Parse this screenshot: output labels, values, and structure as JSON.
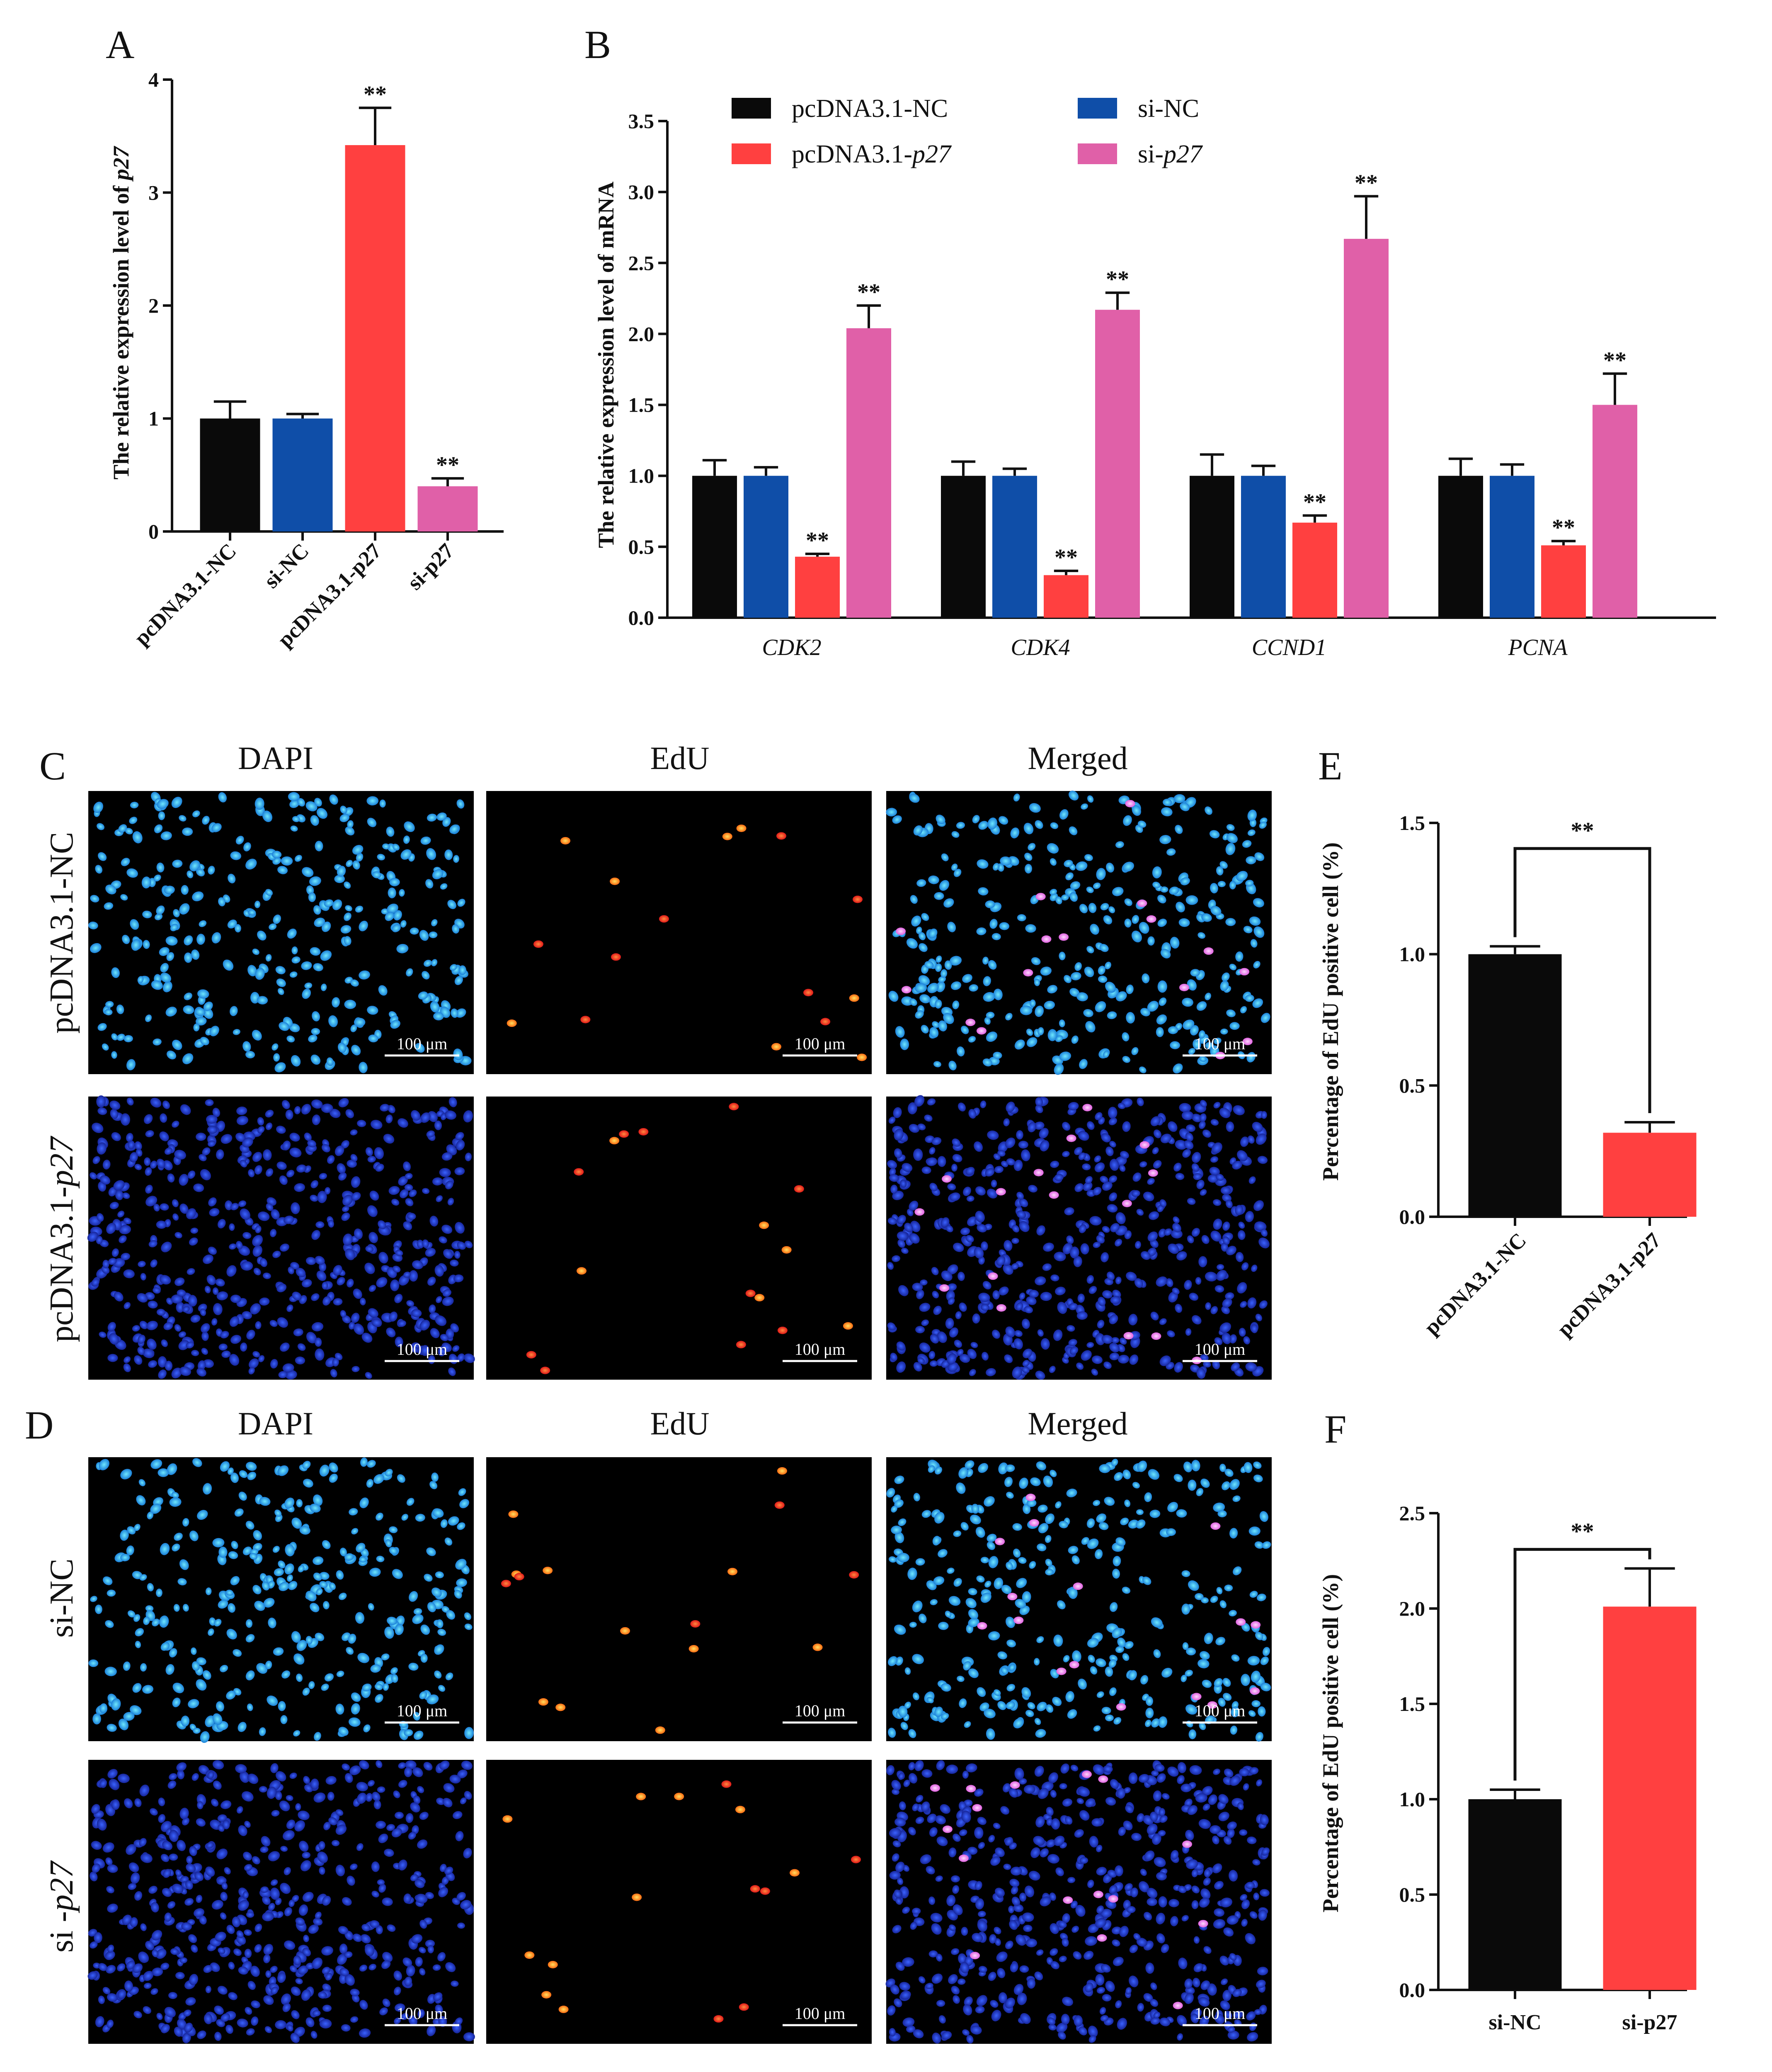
{
  "colors": {
    "black": "#0a0a0a",
    "blue": "#0f4ea8",
    "red": "#ff4040",
    "pink": "#e060a8"
  },
  "chart_data": [
    {
      "panel": "A",
      "type": "bar",
      "ylabel": "The relative expression level of p27",
      "ylabel_prefix": "The relative expression level of ",
      "ylabel_italic": "p27",
      "ylim": [
        0,
        4
      ],
      "yticks": [
        "0",
        "1",
        "2",
        "3",
        "4"
      ],
      "categories": [
        "pcDNA3.1-NC",
        "si-NC",
        "pcDNA3.1-p27",
        "si-p27"
      ],
      "values": [
        1.0,
        1.0,
        3.42,
        0.4
      ],
      "errors": [
        0.15,
        0.04,
        0.33,
        0.07
      ],
      "colors": [
        "black",
        "blue",
        "red",
        "pink"
      ],
      "significance": [
        "",
        "",
        "**",
        "**"
      ]
    },
    {
      "panel": "B",
      "type": "bar",
      "ylabel": "The relative expression level of mRNA",
      "ylim": [
        0,
        3.5
      ],
      "yticks": [
        "0.0",
        "0.5",
        "1.0",
        "1.5",
        "2.0",
        "2.5",
        "3.0",
        "3.5"
      ],
      "categories": [
        "CDK2",
        "CDK4",
        "CCND1",
        "PCNA"
      ],
      "legend": [
        {
          "prefix": "pcDNA3.1-NC",
          "italic": "",
          "color": "black"
        },
        {
          "prefix": "pcDNA3.1-",
          "italic": "p27",
          "color": "red"
        },
        {
          "prefix": "si-NC",
          "italic": "",
          "color": "blue"
        },
        {
          "prefix": "si-",
          "italic": "p27",
          "color": "pink"
        }
      ],
      "series": [
        {
          "name": "pcDNA3.1-NC",
          "color": "black",
          "values": [
            1.0,
            1.0,
            1.0,
            1.0
          ],
          "errors": [
            0.11,
            0.1,
            0.15,
            0.12
          ],
          "significance": [
            "",
            "",
            "",
            ""
          ]
        },
        {
          "name": "si-NC",
          "color": "blue",
          "values": [
            1.0,
            1.0,
            1.0,
            1.0
          ],
          "errors": [
            0.06,
            0.05,
            0.07,
            0.08
          ],
          "significance": [
            "",
            "",
            "",
            ""
          ]
        },
        {
          "name": "pcDNA3.1-p27",
          "color": "red",
          "values": [
            0.43,
            0.3,
            0.67,
            0.51
          ],
          "errors": [
            0.02,
            0.03,
            0.05,
            0.03
          ],
          "significance": [
            "**",
            "**",
            "**",
            "**"
          ]
        },
        {
          "name": "si-p27",
          "color": "pink",
          "values": [
            2.04,
            2.17,
            2.67,
            1.5
          ],
          "errors": [
            0.16,
            0.12,
            0.3,
            0.22
          ],
          "significance": [
            "**",
            "**",
            "**",
            "**"
          ]
        }
      ]
    },
    {
      "panel": "E",
      "type": "bar",
      "ylabel": "Percentage of EdU positive cell (%)",
      "ylim": [
        0,
        1.5
      ],
      "yticks": [
        "0.0",
        "0.5",
        "1.0",
        "1.5"
      ],
      "categories": [
        "pcDNA3.1-NC",
        "pcDNA3.1-p27"
      ],
      "values": [
        1.0,
        0.32
      ],
      "errors": [
        0.03,
        0.04
      ],
      "colors": [
        "black",
        "red"
      ],
      "bracket": "**"
    },
    {
      "panel": "F",
      "type": "bar",
      "ylabel": "Percentage of EdU positive cell (%)",
      "ylim": [
        0,
        2.5
      ],
      "yticks": [
        "0.0",
        "0.5",
        "1.0",
        "1.5",
        "2.0",
        "2.5"
      ],
      "categories": [
        "si-NC",
        "si-p27"
      ],
      "values": [
        1.0,
        2.01
      ],
      "errors": [
        0.05,
        0.2
      ],
      "colors": [
        "black",
        "red"
      ],
      "bracket": "**"
    }
  ],
  "micrographs": {
    "C": {
      "columns": [
        "DAPI",
        "EdU",
        "Merged"
      ],
      "rows": [
        {
          "prefix": "pcDNA3.1-NC",
          "italic": ""
        },
        {
          "prefix": "pcDNA3.1-",
          "italic": "p27"
        }
      ],
      "scale_bar": "100 μm"
    },
    "D": {
      "columns": [
        "DAPI",
        "EdU",
        "Merged"
      ],
      "rows": [
        {
          "prefix": "si-NC",
          "italic": ""
        },
        {
          "prefix": "si -",
          "italic": "p27"
        }
      ],
      "scale_bar": "100 μm"
    }
  },
  "panel_labels": [
    "A",
    "B",
    "C",
    "D",
    "E",
    "F"
  ]
}
